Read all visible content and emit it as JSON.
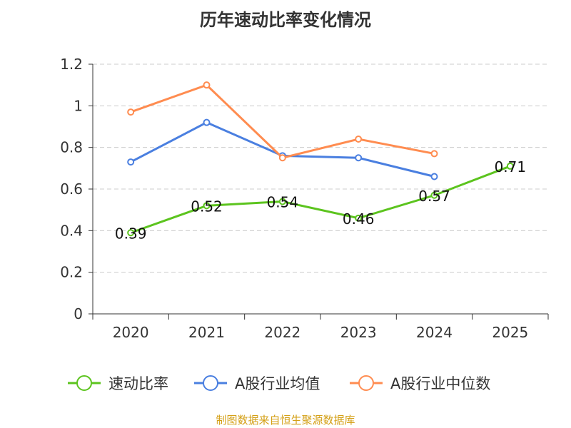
{
  "chart_data": {
    "type": "line",
    "title": "历年速动比率变化情况",
    "categories": [
      "2020",
      "2021",
      "2022",
      "2023",
      "2024",
      "2025"
    ],
    "ylim": [
      0,
      1.2
    ],
    "yticks": [
      0,
      0.2,
      0.4,
      0.6,
      0.8,
      1,
      1.2
    ],
    "ytick_labels": [
      "0",
      "0.2",
      "0.4",
      "0.6",
      "0.8",
      "1",
      "1.2"
    ],
    "grid": true,
    "legend_position": "bottom",
    "series": [
      {
        "name": "速动比率",
        "color": "#5cc41e",
        "values": [
          0.39,
          0.52,
          0.54,
          0.46,
          0.57,
          0.71
        ],
        "labels": [
          "0.39",
          "0.52",
          "0.54",
          "0.46",
          "0.57",
          "0.71"
        ]
      },
      {
        "name": "A股行业均值",
        "color": "#4a7fe0",
        "values": [
          0.73,
          0.92,
          0.76,
          0.75,
          0.66,
          null
        ]
      },
      {
        "name": "A股行业中位数",
        "color": "#ff8c50",
        "values": [
          0.97,
          1.1,
          0.75,
          0.84,
          0.77,
          null
        ]
      }
    ]
  },
  "source": "制图数据来自恒生聚源数据库"
}
